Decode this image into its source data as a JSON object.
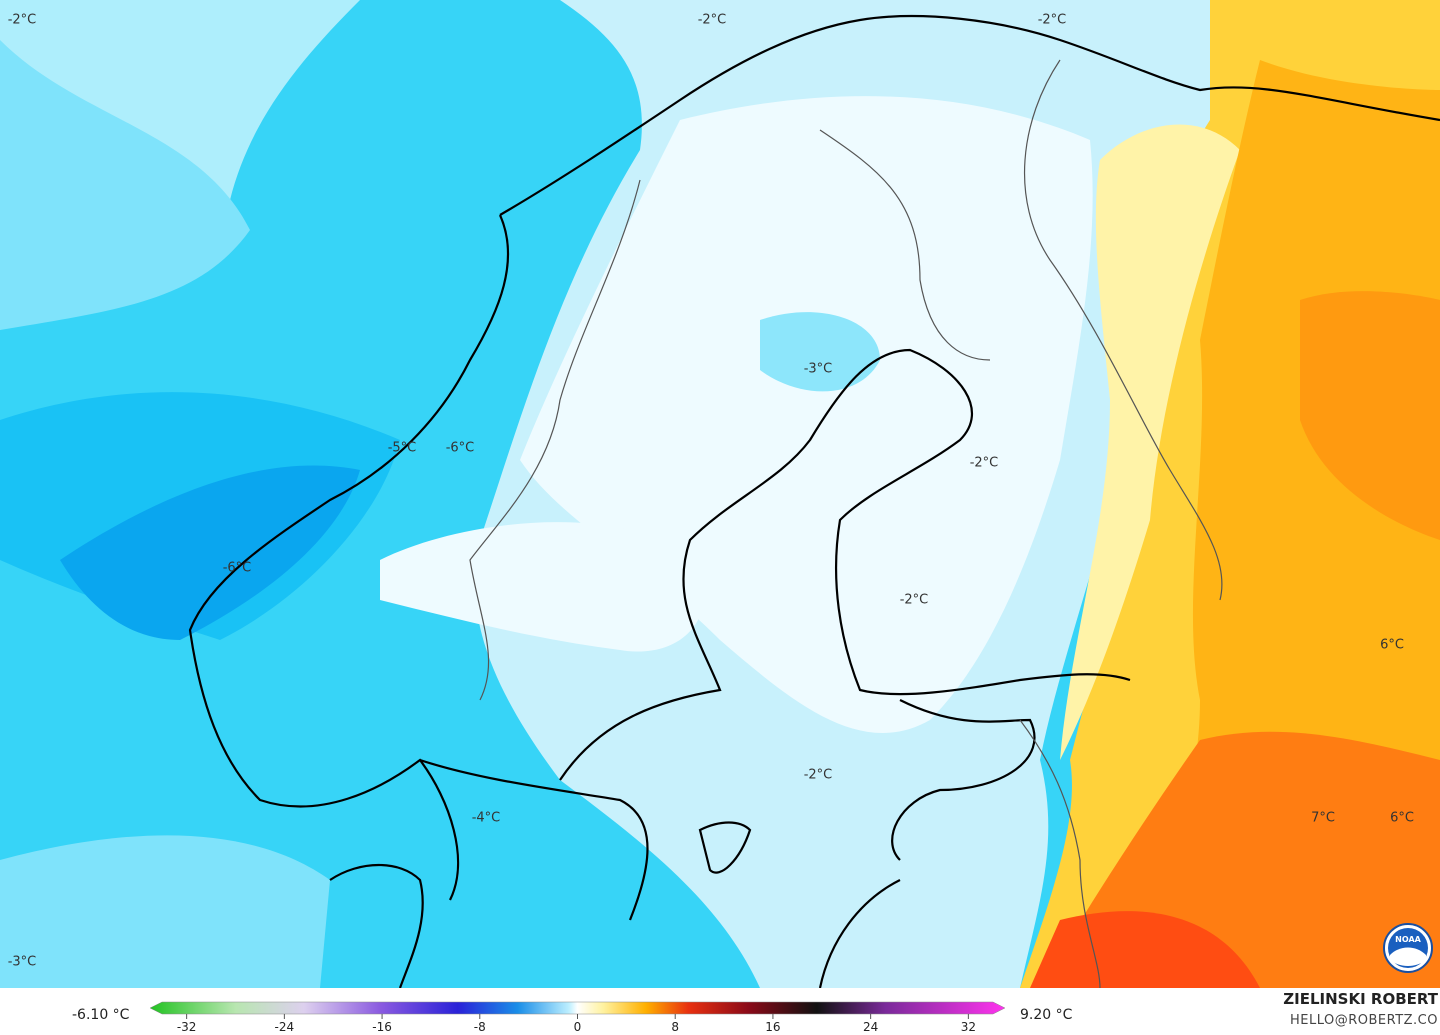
{
  "map": {
    "labels": [
      "-2°C",
      "-2°C",
      "-2°C",
      "-3°C",
      "-5°C",
      "-6°C",
      "-2°C",
      "-6°C",
      "-2°C",
      "-2°C",
      "-4°C",
      "-3°C",
      "6°C",
      "7°C",
      "6°C"
    ]
  },
  "legend": {
    "min_label": "-6.10 °C",
    "max_label": "9.20 °C",
    "lim": [
      -35,
      35
    ],
    "ticks": [
      -32,
      -24,
      -16,
      -8,
      0,
      8,
      16,
      24,
      32
    ]
  },
  "credits": {
    "author": "ZIELINSKI ROBERT",
    "email": "HELLO@ROBERTZ.CO",
    "logo": "NOAA"
  }
}
